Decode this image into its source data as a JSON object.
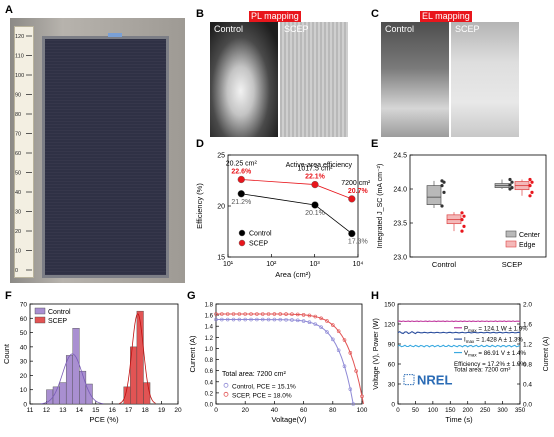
{
  "panels": {
    "A": "A",
    "B": "B",
    "C": "C",
    "D": "D",
    "E": "E",
    "F": "F",
    "G": "G",
    "H": "H"
  },
  "panel_a": {
    "ruler_ticks": [
      "0",
      "10",
      "20",
      "30",
      "40",
      "50",
      "60",
      "70",
      "80",
      "90",
      "100",
      "110",
      "120"
    ]
  },
  "panel_b": {
    "tag": "PL mapping",
    "left": "Control",
    "right": "SCEP"
  },
  "panel_c": {
    "tag": "EL mapping",
    "left": "Control",
    "right": "SCEP"
  },
  "chart_data": [
    {
      "id": "D",
      "type": "scatter",
      "title": "Active-area efficiency",
      "xlabel": "Area (cm²)",
      "ylabel": "Efficiency (%)",
      "xscale": "log",
      "xlim": [
        10,
        10000
      ],
      "ylim": [
        15,
        25
      ],
      "xticks": [
        "10¹",
        "10²",
        "10³",
        "10⁴"
      ],
      "yticks": [
        "15",
        "20",
        "25"
      ],
      "series": [
        {
          "name": "Control",
          "color": "#000000",
          "x": [
            20.25,
            1017.5,
            7200
          ],
          "y": [
            21.2,
            20.1,
            17.3
          ],
          "labels": [
            "21.2%",
            "20.1%",
            "17.3%"
          ]
        },
        {
          "name": "SCEP",
          "color": "#e8161c",
          "x": [
            20.25,
            1017.5,
            7200
          ],
          "y": [
            22.6,
            22.1,
            20.7
          ],
          "labels": [
            "22.6%",
            "22.1%",
            "20.7%"
          ]
        }
      ],
      "area_labels": [
        "20.25 cm²",
        "1017.5 cm²",
        "7200 cm²"
      ],
      "legend": "bottom-left"
    },
    {
      "id": "E",
      "type": "box",
      "ylabel": "Integrated J_SC (mA cm⁻²)",
      "ylim": [
        23.0,
        24.5
      ],
      "yticks": [
        "23.0",
        "23.5",
        "24.0",
        "24.5"
      ],
      "categories": [
        "Control",
        "SCEP"
      ],
      "legend_items": [
        "Center",
        "Edge"
      ],
      "legend": "bottom-right",
      "boxes": [
        {
          "group": "Control",
          "kind": "Center",
          "q1": 23.77,
          "median": 23.88,
          "q3": 24.05,
          "min": 23.72,
          "max": 24.12,
          "points": [
            24.12,
            24.1,
            24.05,
            23.95,
            23.75
          ]
        },
        {
          "group": "Control",
          "kind": "Edge",
          "q1": 23.49,
          "median": 23.55,
          "q3": 23.62,
          "min": 23.38,
          "max": 23.66,
          "points": [
            23.65,
            23.6,
            23.55,
            23.45,
            23.38
          ]
        },
        {
          "group": "SCEP",
          "kind": "Center",
          "q1": 24.02,
          "median": 24.05,
          "q3": 24.08,
          "min": 24.0,
          "max": 24.14,
          "points": [
            24.14,
            24.1,
            24.06,
            24.02,
            24.0
          ]
        },
        {
          "group": "SCEP",
          "kind": "Edge",
          "q1": 23.99,
          "median": 24.05,
          "q3": 24.11,
          "min": 23.9,
          "max": 24.14,
          "points": [
            24.14,
            24.1,
            24.05,
            23.95,
            23.9
          ]
        }
      ]
    },
    {
      "id": "F",
      "type": "bar",
      "xlabel": "PCE (%)",
      "ylabel": "Count",
      "xlim": [
        11,
        20
      ],
      "ylim": [
        0,
        70
      ],
      "xticks": [
        "11",
        "12",
        "13",
        "14",
        "15",
        "16",
        "17",
        "18",
        "19",
        "20"
      ],
      "yticks": [
        "0",
        "10",
        "20",
        "30",
        "40",
        "50",
        "60",
        "70"
      ],
      "legend": "top-left",
      "series": [
        {
          "name": "Control",
          "color": "#a98fd1",
          "bin_centers": [
            12.2,
            12.6,
            13.0,
            13.4,
            13.8,
            14.2,
            14.6
          ],
          "counts": [
            10,
            12,
            15,
            34,
            53,
            23,
            14
          ]
        },
        {
          "name": "SCEP",
          "color": "#e25454",
          "bin_centers": [
            16.9,
            17.3,
            17.7,
            18.1
          ],
          "counts": [
            12,
            40,
            65,
            15
          ]
        }
      ]
    },
    {
      "id": "G",
      "type": "line",
      "xlabel": "Voltage(V)",
      "ylabel": "Current (A)",
      "xlim": [
        0,
        100
      ],
      "ylim": [
        0,
        1.8
      ],
      "xticks": [
        "0",
        "20",
        "40",
        "60",
        "80",
        "100"
      ],
      "yticks": [
        "0.0",
        "0.2",
        "0.4",
        "0.6",
        "0.8",
        "1.0",
        "1.2",
        "1.4",
        "1.6",
        "1.8"
      ],
      "annotation": "Total area: 7200 cm²",
      "legend": "bottom-left",
      "series": [
        {
          "name": "Control, PCE = 15.1%",
          "color": "#8f8ad6",
          "isc": 1.52,
          "voc": 94
        },
        {
          "name": "SCEP, PCE = 18.0%",
          "color": "#e25454",
          "isc": 1.62,
          "voc": 101
        }
      ]
    },
    {
      "id": "H",
      "type": "line",
      "xlabel": "Time (s)",
      "ylabel_left": "Voltage (V), Power (W)",
      "ylabel_right": "Current (A)",
      "xlim": [
        0,
        350
      ],
      "ylim_left": [
        0,
        150
      ],
      "ylim_right": [
        0,
        2.0
      ],
      "xticks": [
        "0",
        "50",
        "100",
        "150",
        "200",
        "250",
        "300",
        "350"
      ],
      "yticks_left": [
        "0",
        "30",
        "60",
        "90",
        "120",
        "150"
      ],
      "yticks_right": [
        "0.0",
        "0.4",
        "0.8",
        "1.2",
        "1.6",
        "2.0"
      ],
      "series": [
        {
          "name": "P_max",
          "label_text": "P",
          "sub": "max",
          "value": "= 124.1 W ± 1.9%",
          "color": "#c0399e",
          "level": 124.1,
          "axis": "left"
        },
        {
          "name": "I_max",
          "label_text": "I",
          "sub": "max",
          "value": "= 1.428 A ± 1.3%",
          "color": "#2c4f9e",
          "level": 1.428,
          "axis": "right"
        },
        {
          "name": "V_max",
          "label_text": "V",
          "sub": "max",
          "value": "= 86.91 V ± 1.4%",
          "color": "#3aa9e0",
          "level": 86.91,
          "axis": "left"
        }
      ],
      "annotation_1": "Efficiency = 17.2% ± 1.9%",
      "annotation_2": "Total area: 7200 cm²",
      "logo": "NREL"
    }
  ]
}
